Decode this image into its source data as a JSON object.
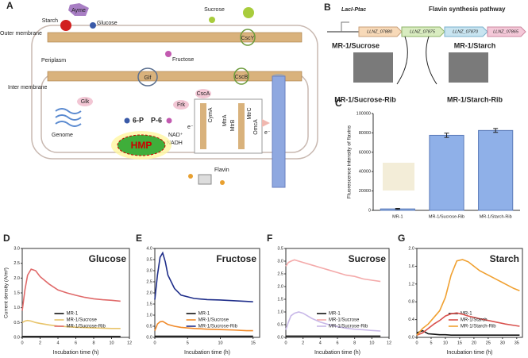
{
  "figure": {
    "panel_a": {
      "panel_label": "A",
      "enzyme": "Ayme",
      "starch": "Starch",
      "glucose": "Glucose",
      "sucrose": "Sucrose",
      "outer_membrane": "Outer membrane",
      "periplasm": "Periplasm",
      "inter_membrane": "Inter membrane",
      "cscy": "CscY",
      "fructose": "Fructose",
      "glf": "Glf",
      "cscb": "CscB",
      "csca": "CscA",
      "glk": "Glk",
      "frk": "Frk",
      "g6p": "6-P",
      "f6p": "P-6",
      "nad": "NAD⁺",
      "nadh": "NADH",
      "hmp": "HMP",
      "genome": "Genome",
      "flavin": "Flavin",
      "cyma": "CymA",
      "mtra": "MtrA",
      "mtrb": "MtrB",
      "mtrc": "MtrC",
      "omca": "OmcA",
      "electron": "e⁻"
    },
    "panel_b": {
      "panel_label": "B",
      "promoter": "LacI-Ptac",
      "pathway": "Flavin synthesis pathway",
      "genes": [
        "LLNZ_07880",
        "LLNZ_07875",
        "LLNZ_07870",
        "LLNZ_07865"
      ],
      "strain_left": "MR-1/Sucrose",
      "strain_right": "MR-1/Starch",
      "product_left": "MR-1/Sucrose-Rib",
      "product_right": "MR-1/Starch-Rib"
    }
  },
  "chart_data": [
    {
      "type": "bar",
      "panel_label": "C",
      "ylabel": "Fluorescence intensity of flavins",
      "categories": [
        "MR-1",
        "MR-1/Sucrose-Rib",
        "MR-1/Starch-Rib"
      ],
      "values": [
        1500,
        77500,
        82500
      ],
      "errors": [
        500,
        2200,
        2000
      ],
      "color": "#8fb0e8",
      "ylim": [
        0,
        100000
      ],
      "yticks": [
        0,
        20000,
        40000,
        60000,
        80000,
        100000
      ]
    },
    {
      "type": "line",
      "panel_label": "D",
      "annotation": "Glucose",
      "ylabel": "Current density (A/m²)",
      "xlabel": "Incubation time (h)",
      "legend": "lower center",
      "x": [
        0,
        0.3,
        0.6,
        1,
        1.5,
        2,
        3,
        4,
        5,
        6,
        7,
        8,
        9,
        10,
        11
      ],
      "xlim": [
        0,
        12
      ],
      "xticks": [
        0,
        2,
        4,
        6,
        8,
        10,
        12
      ],
      "ylim": [
        0,
        3
      ],
      "yticks": [
        {
          "value": 0,
          "label": "0.0"
        },
        {
          "value": 0.5,
          "label": "0.5"
        },
        {
          "value": 1,
          "label": "1.0"
        },
        {
          "value": 1.5,
          "label": "1.5"
        },
        {
          "value": 2,
          "label": "2.0"
        },
        {
          "value": 2.5,
          "label": "2.5"
        },
        {
          "value": 3,
          "label": "3.0"
        }
      ],
      "series": [
        {
          "name": "MR-1",
          "color": "#111111",
          "values": [
            0.03,
            0.03,
            0.03,
            0.03,
            0.03,
            0.03,
            0.03,
            0.03,
            0.03,
            0.03,
            0.03,
            0.03,
            0.03,
            0.03,
            0.03
          ]
        },
        {
          "name": "MR-1/Sucrose",
          "color": "#e8c46a",
          "values": [
            0.5,
            0.55,
            0.57,
            0.55,
            0.5,
            0.47,
            0.42,
            0.38,
            0.36,
            0.34,
            0.33,
            0.32,
            0.31,
            0.3,
            0.3
          ]
        },
        {
          "name": "MR-1/Sucrose-Rib",
          "color": "#e06a6a",
          "values": [
            0.9,
            1.6,
            2.1,
            2.3,
            2.25,
            2.05,
            1.8,
            1.6,
            1.5,
            1.42,
            1.35,
            1.3,
            1.27,
            1.25,
            1.22
          ]
        }
      ]
    },
    {
      "type": "line",
      "panel_label": "E",
      "annotation": "Fructose",
      "xlabel": "Incubation time (h)",
      "legend": "lower center",
      "x": [
        0,
        0.4,
        0.8,
        1.2,
        1.6,
        2,
        3,
        4,
        6,
        8,
        10,
        12,
        14,
        15
      ],
      "xlim": [
        0,
        16
      ],
      "xticks": [
        0,
        5,
        10,
        15
      ],
      "ylim": [
        0,
        4
      ],
      "yticks": [
        {
          "value": 0,
          "label": "0.0"
        },
        {
          "value": 0.5,
          "label": "0.5"
        },
        {
          "value": 1,
          "label": "1.0"
        },
        {
          "value": 1.5,
          "label": "1.5"
        },
        {
          "value": 2,
          "label": "2.0"
        },
        {
          "value": 2.5,
          "label": "2.5"
        },
        {
          "value": 3,
          "label": "3.0"
        },
        {
          "value": 3.5,
          "label": "3.5"
        },
        {
          "value": 4,
          "label": "4.0"
        }
      ],
      "series": [
        {
          "name": "MR-1",
          "color": "#111111",
          "values": [
            0.05,
            0.05,
            0.05,
            0.05,
            0.05,
            0.05,
            0.05,
            0.05,
            0.05,
            0.05,
            0.05,
            0.05,
            0.05,
            0.05
          ]
        },
        {
          "name": "MR-1/Sucrose",
          "color": "#f08a2a",
          "values": [
            0.3,
            0.6,
            0.7,
            0.72,
            0.65,
            0.58,
            0.5,
            0.45,
            0.4,
            0.37,
            0.35,
            0.33,
            0.3,
            0.3
          ]
        },
        {
          "name": "MR-1/Sucrose-Rib",
          "color": "#1f2e8a",
          "values": [
            1.7,
            2.8,
            3.6,
            3.8,
            3.4,
            2.8,
            2.2,
            1.9,
            1.75,
            1.7,
            1.68,
            1.65,
            1.62,
            1.6
          ]
        }
      ]
    },
    {
      "type": "line",
      "panel_label": "F",
      "annotation": "Sucrose",
      "xlabel": "Incubation time (h)",
      "legend": "lower center",
      "x": [
        0,
        0.3,
        0.6,
        1,
        1.5,
        2,
        3,
        4,
        5,
        6,
        7,
        8,
        9,
        10,
        11
      ],
      "xlim": [
        0,
        12
      ],
      "xticks": [
        0,
        2,
        4,
        6,
        8,
        10,
        12
      ],
      "ylim": [
        0,
        3.5
      ],
      "yticks": [
        {
          "value": 0,
          "label": "0.0"
        },
        {
          "value": 0.5,
          "label": "0.5"
        },
        {
          "value": 1,
          "label": "1.0"
        },
        {
          "value": 1.5,
          "label": "1.5"
        },
        {
          "value": 2,
          "label": "2.0"
        },
        {
          "value": 2.5,
          "label": "2.5"
        },
        {
          "value": 3,
          "label": "3.0"
        },
        {
          "value": 3.5,
          "label": "3.5"
        }
      ],
      "series": [
        {
          "name": "MR-1",
          "color": "#111111",
          "values": [
            0.05,
            0.05,
            0.05,
            0.05,
            0.05,
            0.05,
            0.05,
            0.05,
            0.05,
            0.05,
            0.05,
            0.05,
            0.05,
            0.05,
            0.05
          ]
        },
        {
          "name": "MR-1/Sucrose",
          "color": "#f4aaaa",
          "values": [
            2.8,
            2.95,
            3,
            3.05,
            3,
            2.95,
            2.85,
            2.75,
            2.65,
            2.55,
            2.45,
            2.4,
            2.3,
            2.25,
            2.2
          ]
        },
        {
          "name": "MR-1/Sucrose-Rib",
          "color": "#c8b8e8",
          "values": [
            0.3,
            0.6,
            0.85,
            0.95,
            1,
            0.95,
            0.75,
            0.6,
            0.5,
            0.42,
            0.36,
            0.32,
            0.3,
            0.27,
            0.25
          ]
        }
      ]
    },
    {
      "type": "line",
      "panel_label": "G",
      "annotation": "Starch",
      "xlabel": "Incubation time (h)",
      "legend": "lower center",
      "x": [
        0,
        2,
        4,
        6,
        8,
        10,
        12,
        14,
        16,
        18,
        20,
        22,
        25,
        28,
        31,
        34,
        36
      ],
      "xlim": [
        0,
        37
      ],
      "xticks": [
        0,
        5,
        10,
        15,
        20,
        25,
        30,
        35
      ],
      "ylim": [
        0,
        2
      ],
      "yticks": [
        {
          "value": 0,
          "label": "0.0"
        },
        {
          "value": 0.4,
          "label": "0.4"
        },
        {
          "value": 0.8,
          "label": "0.8"
        },
        {
          "value": 1.2,
          "label": "1.2"
        },
        {
          "value": 1.6,
          "label": "1.6"
        },
        {
          "value": 2,
          "label": "2.0"
        }
      ],
      "series": [
        {
          "name": "MR-1",
          "color": "#111111",
          "values": [
            0.1,
            0.15,
            0.08,
            0.07,
            0.06,
            0.06,
            0.05,
            0.05,
            0.05,
            0.05,
            0.05,
            0.05,
            0.05,
            0.05,
            0.05,
            0.05,
            0.05
          ]
        },
        {
          "name": "MR-1/Starch",
          "color": "#d9534f",
          "values": [
            0.05,
            0.1,
            0.2,
            0.3,
            0.38,
            0.48,
            0.53,
            0.55,
            0.52,
            0.48,
            0.45,
            0.42,
            0.38,
            0.34,
            0.3,
            0.27,
            0.25
          ]
        },
        {
          "name": "MR-1/Starch-Rib",
          "color": "#f0a030",
          "values": [
            0.05,
            0.2,
            0.3,
            0.45,
            0.6,
            0.9,
            1.4,
            1.72,
            1.75,
            1.7,
            1.6,
            1.5,
            1.4,
            1.3,
            1.2,
            1.1,
            1.05
          ]
        }
      ]
    }
  ]
}
